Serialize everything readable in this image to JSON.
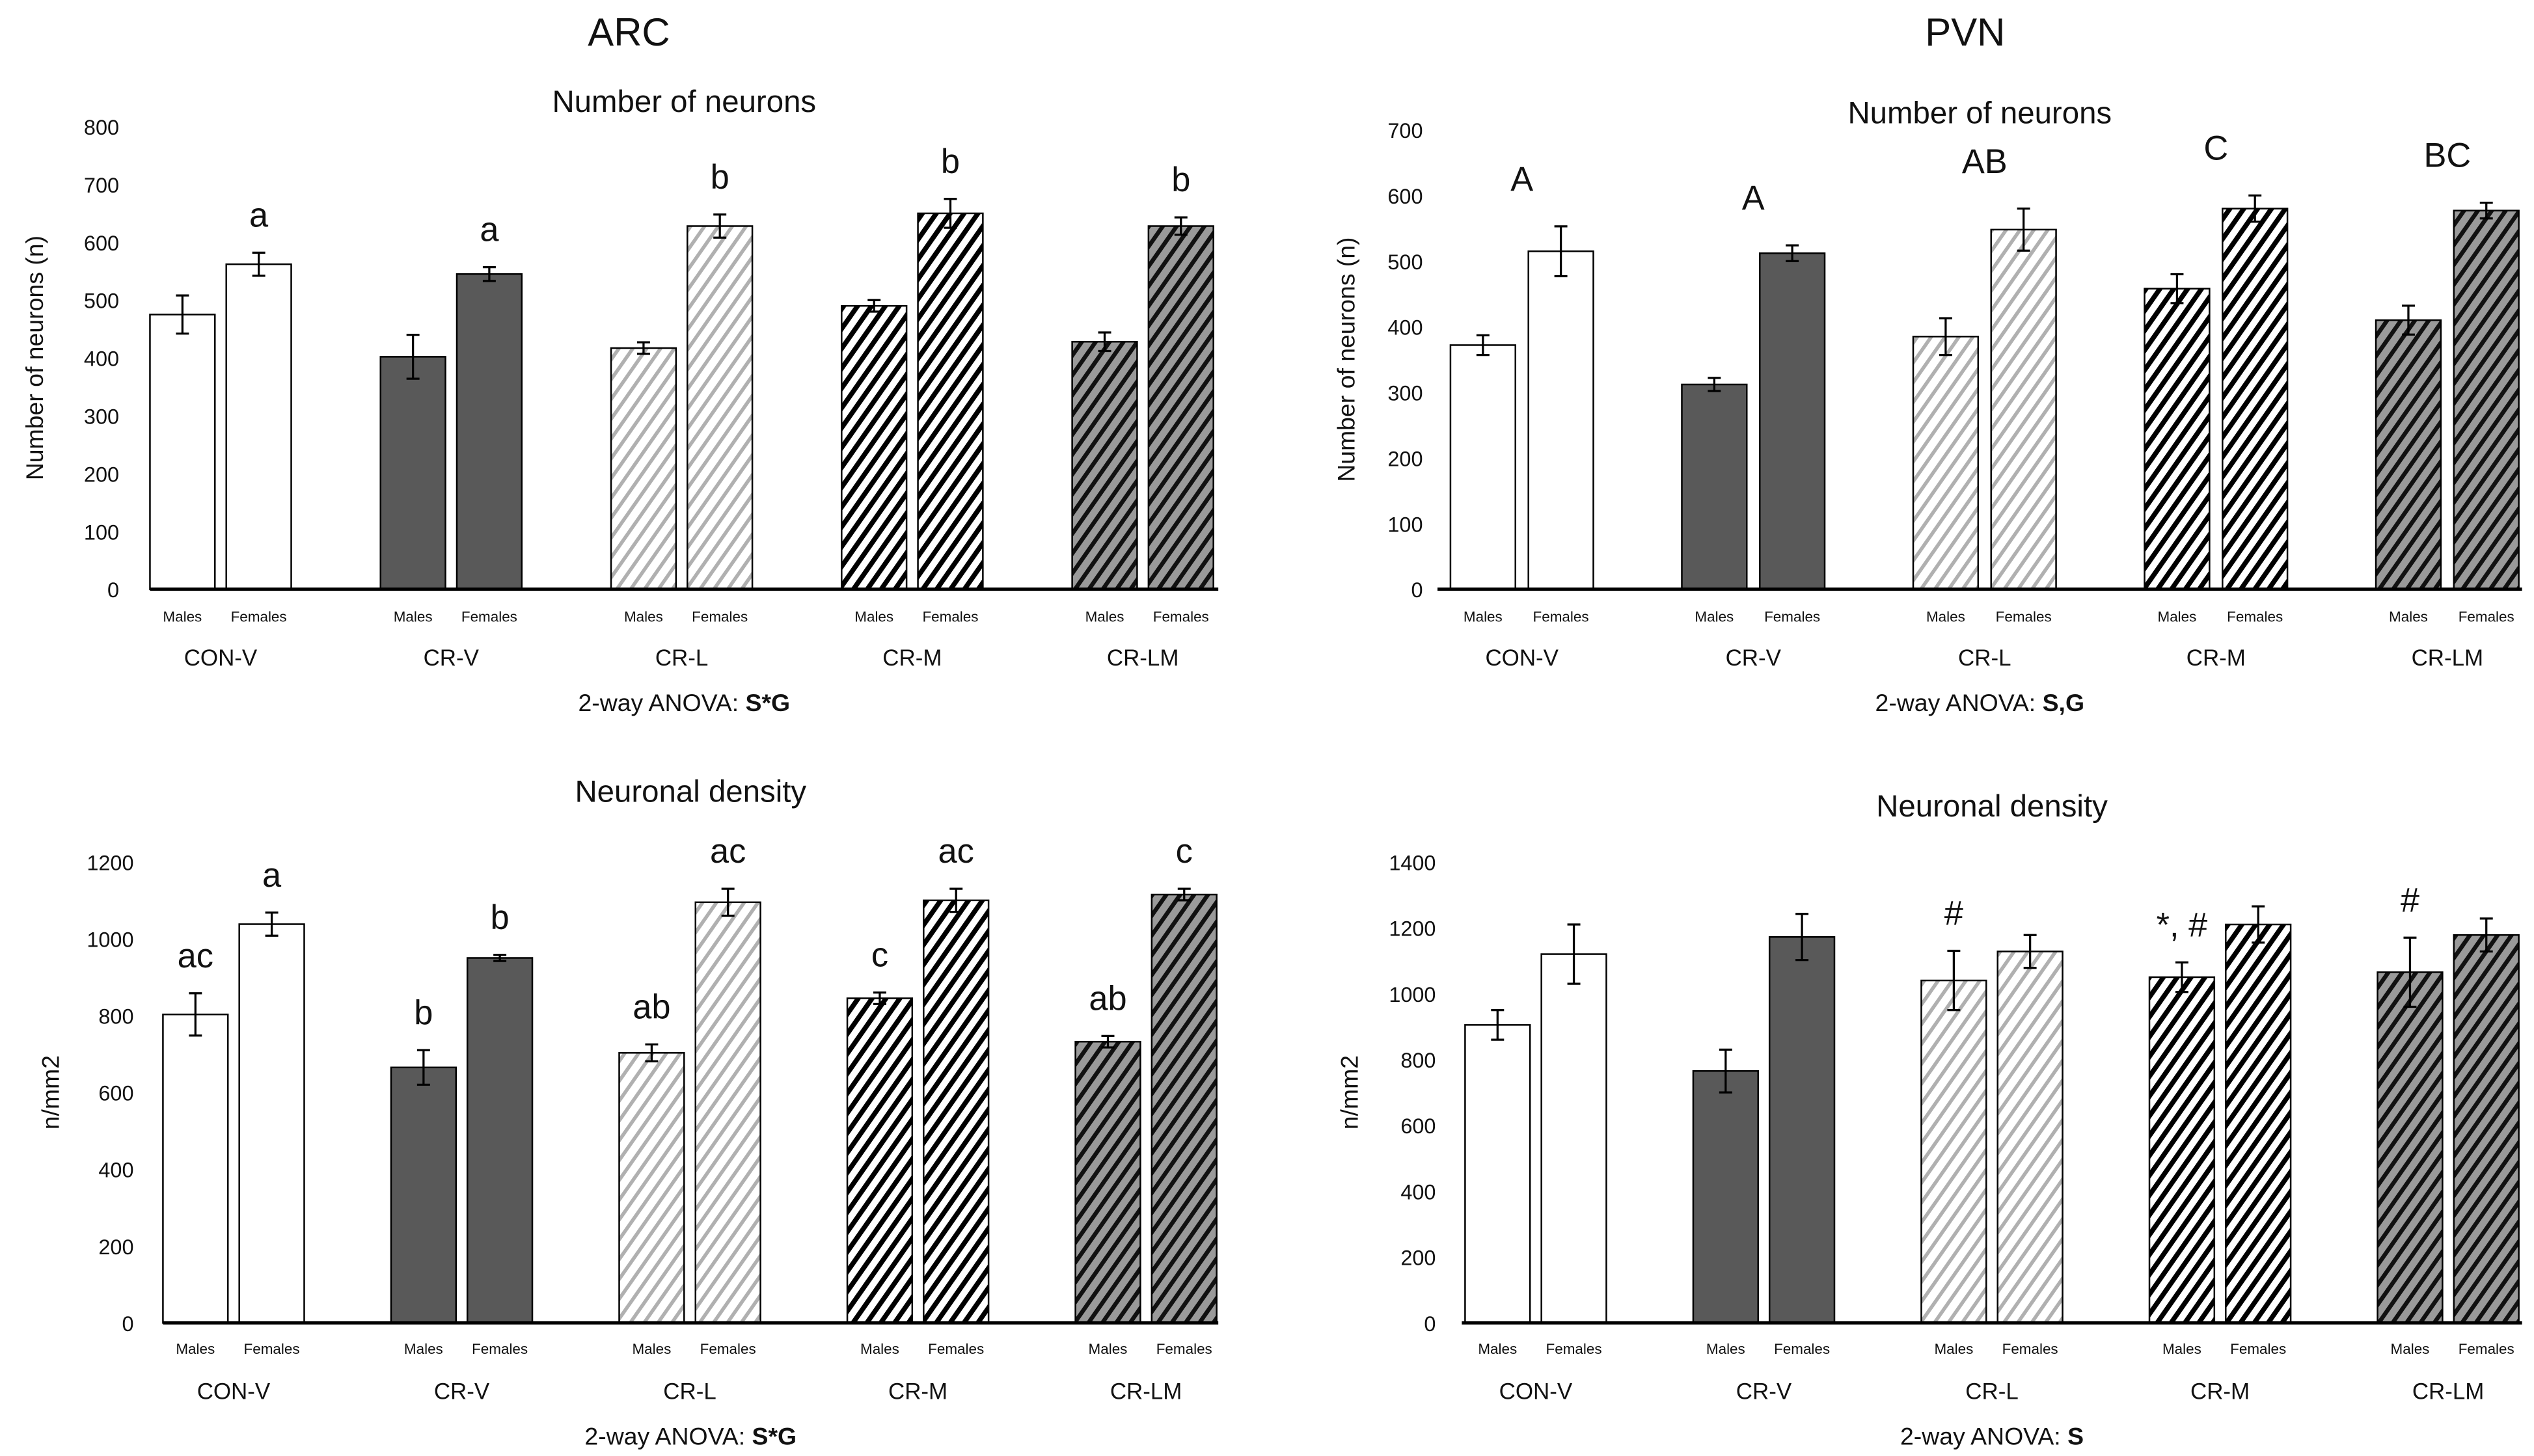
{
  "sections": [
    "ARC",
    "PVN"
  ],
  "chart_data": [
    {
      "type": "bar",
      "section": "ARC",
      "title": "Number of neurons",
      "ylabel": "Number of neurons (n)",
      "ylim": [
        0,
        800
      ],
      "yticks": [
        0,
        100,
        200,
        300,
        400,
        500,
        600,
        700,
        800
      ],
      "categories": [
        "CON-V",
        "CR-V",
        "CR-L",
        "CR-M",
        "CR-LM"
      ],
      "sublabels": [
        "Males",
        "Females"
      ],
      "series": [
        {
          "name": "Males",
          "values": [
            475,
            402,
            417,
            490,
            428
          ],
          "errors": [
            33,
            38,
            10,
            10,
            16
          ]
        },
        {
          "name": "Females",
          "values": [
            562,
            545,
            628,
            650,
            628
          ],
          "errors": [
            20,
            12,
            20,
            25,
            15
          ]
        }
      ],
      "annotations": {
        "Males": [
          "",
          "",
          "",
          "",
          ""
        ],
        "Females": [
          "a",
          "a",
          "b",
          "b",
          "b"
        ]
      },
      "anova_prefix": "2-way ANOVA: ",
      "anova_effect": "S*G"
    },
    {
      "type": "bar",
      "section": "PVN",
      "title": "Number of neurons",
      "ylabel": "Number of neurons (n)",
      "ylim": [
        0,
        700
      ],
      "yticks": [
        0,
        100,
        200,
        300,
        400,
        500,
        600,
        700
      ],
      "categories": [
        "CON-V",
        "CR-V",
        "CR-L",
        "CR-M",
        "CR-LM"
      ],
      "sublabels": [
        "Males",
        "Females"
      ],
      "series": [
        {
          "name": "Males",
          "values": [
            372,
            312,
            385,
            458,
            410
          ],
          "errors": [
            15,
            10,
            28,
            22,
            22
          ]
        },
        {
          "name": "Females",
          "values": [
            515,
            512,
            548,
            580,
            577
          ],
          "errors": [
            38,
            12,
            32,
            20,
            12
          ]
        }
      ],
      "group_annotations": [
        "A",
        "A",
        "AB",
        "C",
        "BC"
      ],
      "anova_prefix": "2-way ANOVA: ",
      "anova_effect": "S,G"
    },
    {
      "type": "bar",
      "section": "ARC",
      "title": "Neuronal density",
      "ylabel": "n/mm2",
      "ylim": [
        0,
        1200
      ],
      "yticks": [
        0,
        200,
        400,
        600,
        800,
        1000,
        1200
      ],
      "categories": [
        "CON-V",
        "CR-V",
        "CR-L",
        "CR-M",
        "CR-LM"
      ],
      "sublabels": [
        "Males",
        "Females"
      ],
      "series": [
        {
          "name": "Males",
          "values": [
            803,
            665,
            703,
            845,
            732
          ],
          "errors": [
            55,
            45,
            22,
            15,
            15
          ]
        },
        {
          "name": "Females",
          "values": [
            1038,
            950,
            1095,
            1100,
            1115
          ],
          "errors": [
            30,
            8,
            35,
            30,
            15
          ]
        }
      ],
      "annotations": {
        "Males": [
          "ac",
          "b",
          "ab",
          "c",
          "ab"
        ],
        "Females": [
          "a",
          "b",
          "ac",
          "ac",
          "c"
        ]
      },
      "anova_prefix": "2-way ANOVA: ",
      "anova_effect": "S*G"
    },
    {
      "type": "bar",
      "section": "PVN",
      "title": "Neuronal density",
      "ylabel": "n/mm2",
      "ylim": [
        0,
        1400
      ],
      "yticks": [
        0,
        200,
        400,
        600,
        800,
        1000,
        1200,
        1400
      ],
      "categories": [
        "CON-V",
        "CR-V",
        "CR-L",
        "CR-M",
        "CR-LM"
      ],
      "sublabels": [
        "Males",
        "Females"
      ],
      "series": [
        {
          "name": "Males",
          "values": [
            905,
            765,
            1040,
            1050,
            1065
          ],
          "errors": [
            45,
            65,
            90,
            45,
            105
          ]
        },
        {
          "name": "Females",
          "values": [
            1120,
            1172,
            1128,
            1210,
            1178
          ],
          "errors": [
            90,
            70,
            50,
            55,
            50
          ]
        }
      ],
      "annotations": {
        "Males": [
          "",
          "",
          "#",
          "*, #",
          "#"
        ],
        "Females": [
          "",
          "",
          "",
          "",
          ""
        ]
      },
      "anova_prefix": "2-way ANOVA: ",
      "anova_effect": "S"
    }
  ],
  "colors": {
    "axis": "#000000",
    "dark_fill": "#595959",
    "gray_fill": "#9a9a9a",
    "light_stripe": "#b0b0b0"
  }
}
